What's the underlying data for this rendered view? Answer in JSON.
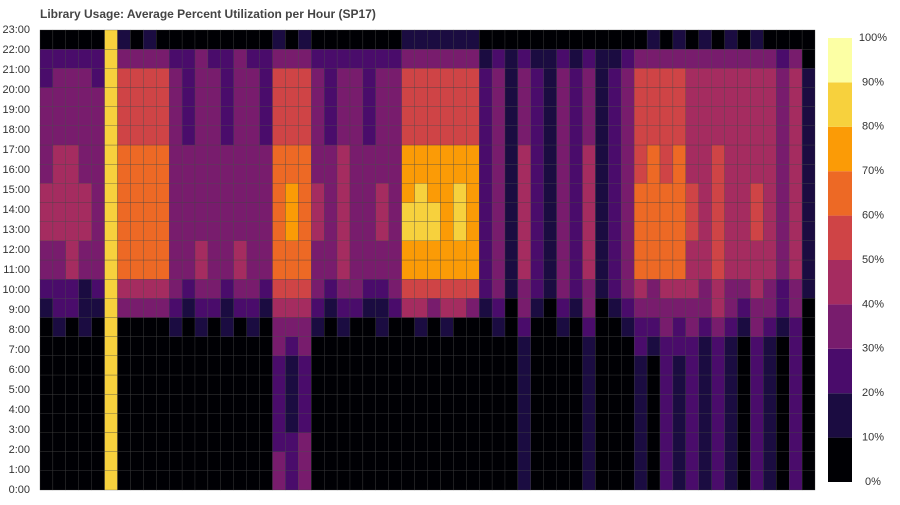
{
  "chart_data": {
    "type": "heatmap",
    "title": "Library Usage: Average Percent Utilization per Hour (SP17)",
    "y": [
      "0:00",
      "1:00",
      "2:00",
      "3:00",
      "4:00",
      "5:00",
      "6:00",
      "7:00",
      "8:00",
      "9:00",
      "10:00",
      "11:00",
      "12:00",
      "13:00",
      "14:00",
      "15:00",
      "16:00",
      "17:00",
      "18:00",
      "19:00",
      "20:00",
      "21:00",
      "22:00",
      "23:00"
    ],
    "zlim": [
      0,
      100
    ],
    "colors": [
      "#000004",
      "#1b0c41",
      "#4a0c6b",
      "#781c6d",
      "#a52c60",
      "#cf4446",
      "#ed6925",
      "#fb9b06",
      "#f7d13d",
      "#fcffa4"
    ],
    "colorbar_ticks": [
      {
        "value": 0,
        "label": "0%"
      },
      {
        "value": 10,
        "label": "10%"
      },
      {
        "value": 20,
        "label": "20%"
      },
      {
        "value": 30,
        "label": "30%"
      },
      {
        "value": 40,
        "label": "40%"
      },
      {
        "value": 50,
        "label": "50%"
      },
      {
        "value": 60,
        "label": "60%"
      },
      {
        "value": 70,
        "label": "70%"
      },
      {
        "value": 80,
        "label": "80%"
      },
      {
        "value": 90,
        "label": "90%"
      },
      {
        "value": 100,
        "label": "100%"
      }
    ],
    "z": [
      [
        0,
        0,
        0,
        0,
        0,
        85,
        0,
        0,
        0,
        0,
        0,
        0,
        0,
        0,
        0,
        0,
        0,
        0,
        35,
        25,
        35,
        5,
        0,
        0,
        0,
        0,
        0,
        0,
        0,
        0,
        0,
        0,
        0,
        0,
        0,
        5,
        0,
        15,
        0,
        0,
        5,
        0,
        15,
        0,
        0,
        5,
        15,
        5,
        25,
        15,
        25,
        15,
        25,
        15,
        5,
        25,
        15,
        5,
        25,
        0
      ],
      [
        0,
        0,
        0,
        0,
        0,
        85,
        0,
        0,
        0,
        0,
        0,
        0,
        0,
        0,
        0,
        0,
        0,
        0,
        35,
        25,
        35,
        5,
        0,
        0,
        0,
        0,
        0,
        0,
        0,
        0,
        0,
        0,
        0,
        0,
        0,
        5,
        0,
        15,
        0,
        0,
        5,
        0,
        15,
        0,
        0,
        5,
        15,
        5,
        25,
        15,
        25,
        15,
        25,
        15,
        5,
        25,
        15,
        5,
        25,
        0
      ],
      [
        0,
        0,
        0,
        0,
        0,
        85,
        0,
        0,
        0,
        0,
        0,
        0,
        0,
        0,
        0,
        0,
        0,
        0,
        25,
        25,
        35,
        5,
        0,
        0,
        0,
        0,
        0,
        0,
        0,
        0,
        0,
        0,
        0,
        0,
        0,
        5,
        0,
        15,
        0,
        0,
        5,
        0,
        15,
        0,
        0,
        5,
        15,
        5,
        25,
        15,
        25,
        15,
        25,
        15,
        5,
        25,
        15,
        5,
        25,
        0
      ],
      [
        0,
        0,
        0,
        0,
        0,
        85,
        0,
        0,
        0,
        0,
        0,
        0,
        0,
        0,
        0,
        0,
        0,
        0,
        25,
        15,
        25,
        5,
        0,
        0,
        0,
        0,
        0,
        0,
        0,
        0,
        0,
        0,
        0,
        0,
        0,
        5,
        0,
        15,
        0,
        0,
        5,
        0,
        15,
        0,
        0,
        5,
        15,
        5,
        25,
        15,
        25,
        15,
        25,
        15,
        5,
        25,
        15,
        5,
        25,
        0
      ],
      [
        0,
        0,
        0,
        0,
        0,
        85,
        0,
        0,
        0,
        0,
        0,
        0,
        0,
        0,
        0,
        0,
        0,
        0,
        25,
        15,
        25,
        5,
        0,
        0,
        0,
        0,
        0,
        0,
        0,
        0,
        0,
        0,
        0,
        0,
        0,
        5,
        0,
        15,
        0,
        0,
        5,
        0,
        15,
        0,
        0,
        5,
        15,
        5,
        25,
        15,
        25,
        15,
        25,
        15,
        5,
        25,
        15,
        5,
        25,
        0
      ],
      [
        0,
        0,
        0,
        0,
        0,
        85,
        0,
        0,
        0,
        0,
        0,
        0,
        0,
        0,
        0,
        0,
        0,
        0,
        25,
        15,
        25,
        5,
        0,
        0,
        0,
        0,
        0,
        0,
        0,
        0,
        0,
        0,
        0,
        0,
        0,
        5,
        0,
        15,
        0,
        0,
        5,
        0,
        15,
        0,
        0,
        5,
        15,
        5,
        25,
        15,
        25,
        15,
        25,
        15,
        5,
        25,
        15,
        5,
        25,
        0
      ],
      [
        0,
        0,
        0,
        0,
        0,
        85,
        0,
        0,
        0,
        0,
        0,
        0,
        0,
        0,
        0,
        0,
        0,
        0,
        25,
        15,
        25,
        5,
        0,
        0,
        0,
        0,
        0,
        0,
        0,
        0,
        0,
        0,
        0,
        0,
        0,
        5,
        0,
        15,
        0,
        0,
        5,
        0,
        15,
        0,
        0,
        5,
        15,
        5,
        25,
        15,
        25,
        15,
        25,
        15,
        5,
        25,
        15,
        5,
        25,
        0
      ],
      [
        0,
        0,
        0,
        0,
        0,
        85,
        0,
        0,
        0,
        0,
        0,
        0,
        0,
        0,
        0,
        0,
        0,
        0,
        35,
        25,
        35,
        5,
        0,
        0,
        0,
        0,
        0,
        0,
        0,
        0,
        0,
        0,
        0,
        0,
        0,
        5,
        0,
        15,
        0,
        0,
        5,
        0,
        15,
        0,
        0,
        5,
        25,
        15,
        25,
        25,
        25,
        15,
        25,
        15,
        5,
        25,
        15,
        5,
        25,
        0
      ],
      [
        5,
        15,
        5,
        15,
        5,
        85,
        5,
        5,
        5,
        5,
        15,
        5,
        15,
        5,
        15,
        5,
        15,
        5,
        35,
        35,
        35,
        15,
        5,
        15,
        5,
        5,
        15,
        5,
        5,
        15,
        5,
        15,
        5,
        5,
        5,
        15,
        5,
        25,
        5,
        5,
        15,
        5,
        25,
        5,
        5,
        15,
        25,
        25,
        35,
        25,
        35,
        25,
        35,
        25,
        15,
        35,
        25,
        15,
        25,
        5
      ],
      [
        15,
        25,
        25,
        15,
        15,
        85,
        35,
        35,
        35,
        35,
        25,
        15,
        25,
        25,
        15,
        25,
        25,
        15,
        45,
        45,
        45,
        25,
        15,
        25,
        25,
        15,
        15,
        25,
        45,
        45,
        35,
        45,
        45,
        35,
        15,
        25,
        5,
        35,
        15,
        5,
        25,
        15,
        35,
        5,
        15,
        25,
        35,
        35,
        35,
        35,
        35,
        35,
        45,
        35,
        25,
        35,
        35,
        25,
        35,
        5
      ],
      [
        25,
        25,
        25,
        15,
        25,
        85,
        45,
        45,
        45,
        45,
        35,
        25,
        35,
        35,
        25,
        35,
        35,
        25,
        55,
        55,
        55,
        35,
        25,
        35,
        35,
        25,
        25,
        35,
        55,
        55,
        55,
        55,
        55,
        55,
        25,
        35,
        15,
        35,
        25,
        15,
        35,
        25,
        35,
        15,
        25,
        35,
        45,
        35,
        45,
        45,
        45,
        35,
        45,
        35,
        35,
        45,
        35,
        25,
        35,
        15
      ],
      [
        35,
        35,
        45,
        35,
        35,
        85,
        65,
        65,
        65,
        65,
        35,
        35,
        45,
        35,
        35,
        45,
        35,
        35,
        65,
        65,
        65,
        35,
        35,
        45,
        35,
        35,
        35,
        35,
        75,
        75,
        75,
        75,
        75,
        75,
        25,
        35,
        15,
        45,
        25,
        15,
        35,
        25,
        45,
        15,
        25,
        35,
        65,
        65,
        65,
        65,
        45,
        45,
        55,
        45,
        45,
        45,
        45,
        35,
        45,
        15
      ],
      [
        35,
        35,
        45,
        35,
        35,
        85,
        65,
        65,
        65,
        65,
        35,
        35,
        45,
        35,
        35,
        45,
        35,
        35,
        65,
        65,
        65,
        35,
        35,
        45,
        35,
        35,
        35,
        35,
        75,
        75,
        75,
        75,
        75,
        75,
        25,
        35,
        15,
        45,
        25,
        15,
        35,
        25,
        45,
        15,
        25,
        35,
        65,
        65,
        65,
        65,
        45,
        45,
        55,
        45,
        45,
        45,
        45,
        35,
        45,
        15
      ],
      [
        45,
        45,
        45,
        45,
        35,
        85,
        65,
        65,
        65,
        65,
        35,
        35,
        35,
        35,
        35,
        35,
        35,
        35,
        65,
        75,
        65,
        45,
        35,
        45,
        35,
        35,
        45,
        35,
        85,
        85,
        85,
        75,
        85,
        75,
        25,
        35,
        15,
        45,
        25,
        15,
        35,
        25,
        45,
        15,
        25,
        35,
        65,
        65,
        65,
        65,
        55,
        45,
        55,
        45,
        45,
        55,
        45,
        35,
        45,
        15
      ],
      [
        45,
        45,
        45,
        45,
        35,
        85,
        65,
        65,
        65,
        65,
        35,
        35,
        35,
        35,
        35,
        35,
        35,
        35,
        65,
        75,
        65,
        45,
        35,
        45,
        35,
        35,
        45,
        35,
        85,
        85,
        85,
        75,
        85,
        75,
        25,
        35,
        15,
        45,
        25,
        15,
        35,
        25,
        45,
        15,
        25,
        35,
        65,
        65,
        65,
        65,
        55,
        45,
        55,
        45,
        45,
        55,
        45,
        35,
        45,
        15
      ],
      [
        45,
        45,
        45,
        45,
        35,
        85,
        65,
        65,
        65,
        65,
        35,
        35,
        35,
        35,
        35,
        35,
        35,
        35,
        65,
        75,
        65,
        45,
        35,
        45,
        35,
        35,
        45,
        35,
        75,
        85,
        75,
        75,
        85,
        75,
        25,
        35,
        15,
        45,
        25,
        15,
        35,
        25,
        45,
        15,
        25,
        35,
        65,
        65,
        65,
        65,
        55,
        45,
        55,
        45,
        45,
        55,
        45,
        35,
        45,
        15
      ],
      [
        35,
        45,
        45,
        35,
        35,
        85,
        65,
        65,
        65,
        65,
        35,
        35,
        35,
        35,
        35,
        35,
        35,
        35,
        65,
        65,
        65,
        35,
        35,
        45,
        35,
        35,
        35,
        35,
        75,
        75,
        75,
        75,
        75,
        75,
        25,
        35,
        15,
        45,
        25,
        15,
        35,
        25,
        45,
        15,
        25,
        35,
        55,
        65,
        55,
        65,
        45,
        45,
        55,
        45,
        45,
        45,
        45,
        35,
        45,
        15
      ],
      [
        35,
        45,
        45,
        35,
        35,
        85,
        65,
        65,
        65,
        65,
        35,
        35,
        35,
        35,
        35,
        35,
        35,
        35,
        65,
        65,
        65,
        35,
        35,
        45,
        35,
        35,
        35,
        35,
        75,
        75,
        75,
        75,
        75,
        75,
        25,
        35,
        15,
        45,
        25,
        15,
        35,
        25,
        45,
        15,
        25,
        35,
        55,
        65,
        55,
        65,
        45,
        45,
        55,
        45,
        45,
        45,
        45,
        35,
        45,
        15
      ],
      [
        35,
        35,
        35,
        35,
        35,
        85,
        55,
        55,
        55,
        55,
        35,
        25,
        35,
        35,
        25,
        35,
        35,
        25,
        55,
        55,
        55,
        35,
        25,
        35,
        35,
        25,
        35,
        35,
        55,
        55,
        55,
        55,
        55,
        55,
        25,
        35,
        15,
        35,
        25,
        15,
        35,
        25,
        35,
        15,
        25,
        35,
        55,
        55,
        55,
        55,
        45,
        45,
        45,
        45,
        45,
        45,
        45,
        35,
        45,
        15
      ],
      [
        35,
        35,
        35,
        35,
        35,
        85,
        55,
        55,
        55,
        55,
        35,
        25,
        35,
        35,
        25,
        35,
        35,
        25,
        55,
        55,
        55,
        35,
        25,
        35,
        35,
        25,
        35,
        35,
        55,
        55,
        55,
        55,
        55,
        55,
        25,
        35,
        15,
        35,
        25,
        15,
        35,
        25,
        35,
        15,
        25,
        35,
        55,
        55,
        55,
        55,
        45,
        45,
        45,
        45,
        45,
        45,
        45,
        35,
        45,
        15
      ],
      [
        35,
        35,
        35,
        35,
        35,
        85,
        55,
        55,
        55,
        55,
        35,
        25,
        35,
        35,
        25,
        35,
        35,
        25,
        55,
        55,
        55,
        35,
        25,
        35,
        35,
        25,
        35,
        35,
        55,
        55,
        55,
        55,
        55,
        55,
        25,
        35,
        15,
        35,
        25,
        15,
        35,
        25,
        35,
        15,
        25,
        35,
        55,
        55,
        55,
        55,
        45,
        45,
        45,
        45,
        45,
        45,
        45,
        35,
        45,
        15
      ],
      [
        25,
        35,
        35,
        35,
        25,
        85,
        55,
        55,
        55,
        55,
        35,
        25,
        35,
        35,
        25,
        35,
        35,
        25,
        55,
        55,
        55,
        35,
        25,
        35,
        35,
        25,
        35,
        35,
        55,
        55,
        55,
        55,
        55,
        55,
        25,
        35,
        15,
        35,
        25,
        15,
        35,
        25,
        35,
        15,
        25,
        35,
        55,
        55,
        55,
        55,
        45,
        45,
        45,
        45,
        45,
        45,
        45,
        35,
        45,
        15
      ],
      [
        25,
        25,
        25,
        25,
        25,
        85,
        35,
        35,
        35,
        35,
        25,
        25,
        35,
        25,
        25,
        35,
        25,
        25,
        35,
        35,
        35,
        25,
        25,
        25,
        25,
        25,
        25,
        25,
        35,
        35,
        35,
        35,
        35,
        35,
        15,
        25,
        15,
        25,
        15,
        15,
        25,
        15,
        25,
        15,
        15,
        25,
        35,
        35,
        35,
        35,
        35,
        35,
        35,
        35,
        35,
        35,
        35,
        25,
        35,
        5
      ],
      [
        5,
        5,
        5,
        5,
        5,
        85,
        15,
        5,
        15,
        5,
        5,
        5,
        5,
        5,
        5,
        5,
        5,
        5,
        15,
        5,
        15,
        5,
        5,
        5,
        5,
        5,
        5,
        5,
        15,
        15,
        15,
        15,
        15,
        15,
        5,
        0,
        5,
        0,
        5,
        0,
        5,
        0,
        5,
        0,
        5,
        0,
        5,
        15,
        5,
        15,
        5,
        15,
        5,
        15,
        5,
        15,
        5,
        0,
        5,
        0
      ]
    ]
  }
}
